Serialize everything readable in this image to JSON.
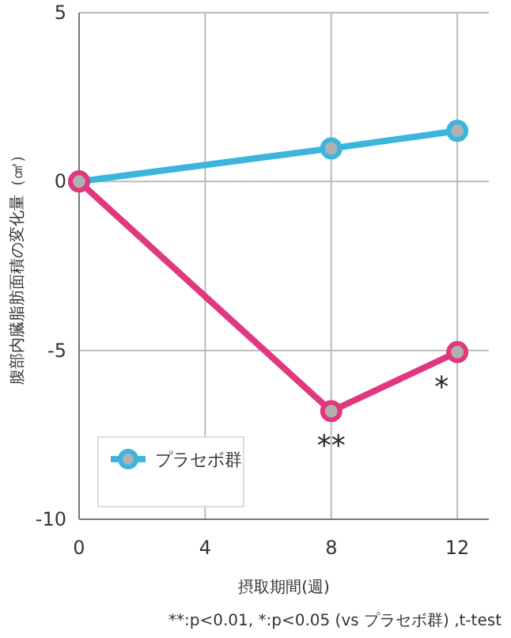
{
  "chart_data": {
    "type": "line",
    "xlabel": "摂取期間(週)",
    "ylabel": "腹部内臓脂肪面積の変化量（㎠）",
    "x": [
      0,
      8,
      12
    ],
    "series": [
      {
        "name": "プラセボ群",
        "color": "#3bb5dc",
        "values": [
          0,
          0.98,
          1.5
        ]
      },
      {
        "color": "#e0387f",
        "values": [
          0,
          -6.8,
          -5.05
        ]
      }
    ],
    "xlim": [
      0,
      13
    ],
    "xticks": [
      0,
      4,
      8,
      12
    ],
    "ylim": [
      -10,
      5
    ],
    "yticks": [
      -10,
      -5,
      0,
      5
    ],
    "grid": true,
    "legend": "bottom left",
    "marker": "circle",
    "line_style": "solid",
    "annotations": [
      {
        "text": "**",
        "x": 8,
        "y": -6.8
      },
      {
        "text": "*",
        "x": 12,
        "y": -5.05
      },
      "**:p<0.01, *:p<0.05 (vs プラセボ群) ,t-test"
    ]
  }
}
